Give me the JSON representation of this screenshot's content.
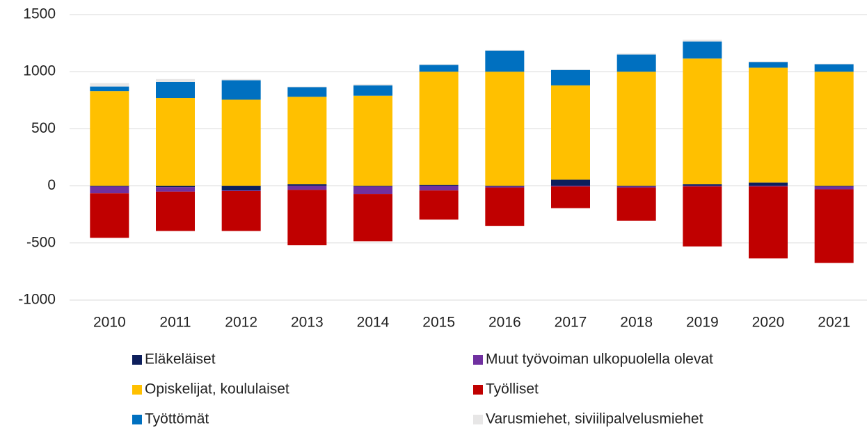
{
  "chart_data": {
    "type": "stacked_bar",
    "categories": [
      "2010",
      "2011",
      "2012",
      "2013",
      "2014",
      "2015",
      "2016",
      "2017",
      "2018",
      "2019",
      "2020",
      "2021"
    ],
    "series": [
      {
        "name": "Eläkeläiset",
        "color": "#0d1f5c",
        "values": [
          -5,
          -10,
          -40,
          15,
          -5,
          10,
          -5,
          55,
          -5,
          15,
          30,
          -5
        ]
      },
      {
        "name": "Muut työvoiman ulkopuolella olevat",
        "color": "#7030a0",
        "values": [
          -60,
          -40,
          -5,
          -35,
          -65,
          -40,
          -10,
          -5,
          -10,
          -5,
          -5,
          -25
        ]
      },
      {
        "name": "Opiskelijat, koululaiset",
        "color": "#ffc000",
        "values": [
          830,
          770,
          755,
          765,
          790,
          990,
          1000,
          825,
          1000,
          1100,
          1005,
          1000
        ]
      },
      {
        "name": "Työlliset",
        "color": "#c00000",
        "values": [
          -390,
          -345,
          -350,
          -485,
          -415,
          -255,
          -335,
          -190,
          -290,
          -525,
          -630,
          -645
        ]
      },
      {
        "name": "Työttömät",
        "color": "#0070c0",
        "values": [
          40,
          140,
          170,
          85,
          90,
          60,
          185,
          135,
          150,
          150,
          50,
          65
        ]
      },
      {
        "name": "Varusmiehet, siviilipalvelusmiehet",
        "color": "#e7e6e6",
        "values": [
          30,
          25,
          10,
          5,
          10,
          5,
          5,
          5,
          10,
          15,
          5,
          5
        ]
      }
    ],
    "ylim": [
      -1000,
      1500
    ],
    "yticks": [
      -1000,
      -500,
      0,
      500,
      1000,
      1500
    ],
    "grid": true,
    "legend": "bottom"
  }
}
